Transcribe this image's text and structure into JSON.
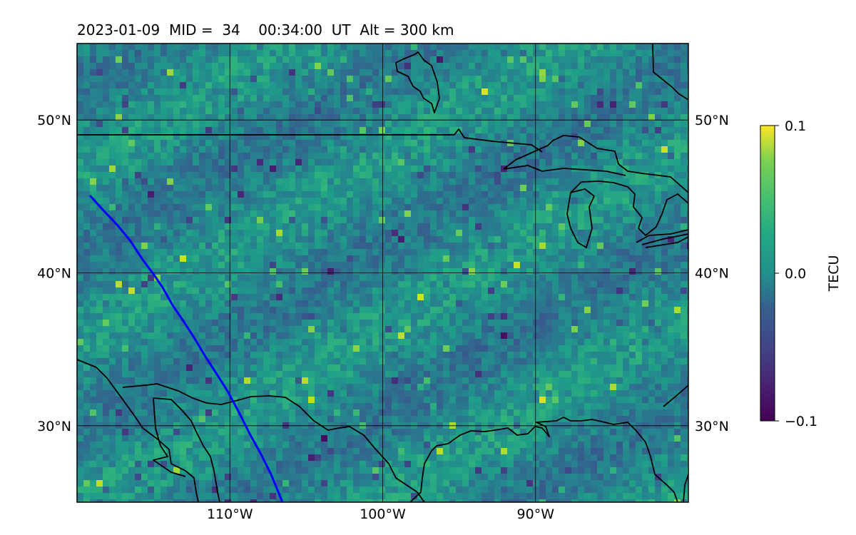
{
  "title": "2023-01-09  MID =  34    00:34:00  UT  Alt = 300 km",
  "map": {
    "lon_range": [
      -120,
      -80
    ],
    "lat_range": [
      25,
      55
    ],
    "lon_ticks": [
      {
        "value": -110,
        "label": "110°W"
      },
      {
        "value": -100,
        "label": "100°W"
      },
      {
        "value": -90,
        "label": "90°W"
      }
    ],
    "lat_ticks": [
      {
        "value": 30,
        "label": "30°N"
      },
      {
        "value": 40,
        "label": "40°N"
      },
      {
        "value": 50,
        "label": "50°N"
      }
    ],
    "gridlines": true,
    "track_color": "#0000ff",
    "coastline_color": "#000000"
  },
  "colorbar": {
    "label": "TECU",
    "colormap": "viridis",
    "vmin": -0.1,
    "vmax": 0.1,
    "ticks": [
      {
        "value": 0.1,
        "label": "0.1"
      },
      {
        "value": 0.0,
        "label": "0.0"
      },
      {
        "value": -0.1,
        "label": "−0.1"
      }
    ]
  }
}
